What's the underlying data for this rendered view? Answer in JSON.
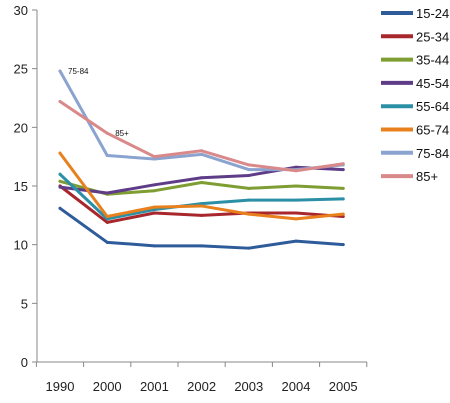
{
  "chart_data": {
    "type": "line",
    "categories": [
      "1990",
      "2000",
      "2001",
      "2002",
      "2003",
      "2004",
      "2005"
    ],
    "ylim": [
      0,
      30
    ],
    "yticks": [
      0,
      5,
      10,
      15,
      20,
      25,
      30
    ],
    "grid": false,
    "legend_position": "right",
    "series": [
      {
        "name": "15-24",
        "color": "#2E5B9A",
        "values": [
          13.1,
          10.2,
          9.9,
          9.9,
          9.7,
          10.3,
          10.0
        ]
      },
      {
        "name": "25-34",
        "color": "#A8272D",
        "values": [
          15.0,
          11.9,
          12.7,
          12.5,
          12.7,
          12.7,
          12.4
        ]
      },
      {
        "name": "35-44",
        "color": "#7E9D32",
        "values": [
          15.4,
          14.3,
          14.6,
          15.3,
          14.8,
          15.0,
          14.8
        ]
      },
      {
        "name": "45-54",
        "color": "#5E3C88",
        "values": [
          14.9,
          14.4,
          15.1,
          15.7,
          15.9,
          16.6,
          16.4
        ]
      },
      {
        "name": "55-64",
        "color": "#2B8FA6",
        "values": [
          16.0,
          12.2,
          13.0,
          13.5,
          13.8,
          13.8,
          13.9
        ]
      },
      {
        "name": "65-74",
        "color": "#E8801E",
        "values": [
          17.8,
          12.4,
          13.2,
          13.3,
          12.6,
          12.2,
          12.6
        ]
      },
      {
        "name": "75-84",
        "color": "#8BA3CF",
        "values": [
          24.8,
          17.6,
          17.3,
          17.7,
          16.4,
          16.4,
          16.8
        ]
      },
      {
        "name": "85+",
        "color": "#D9898A",
        "values": [
          22.2,
          19.5,
          17.5,
          18.0,
          16.8,
          16.3,
          16.9
        ]
      }
    ],
    "annotations": [
      {
        "text": "75-84",
        "x": "1990",
        "y": 24.8
      },
      {
        "text": "85+",
        "x": "2000",
        "y": 19.5
      }
    ]
  }
}
